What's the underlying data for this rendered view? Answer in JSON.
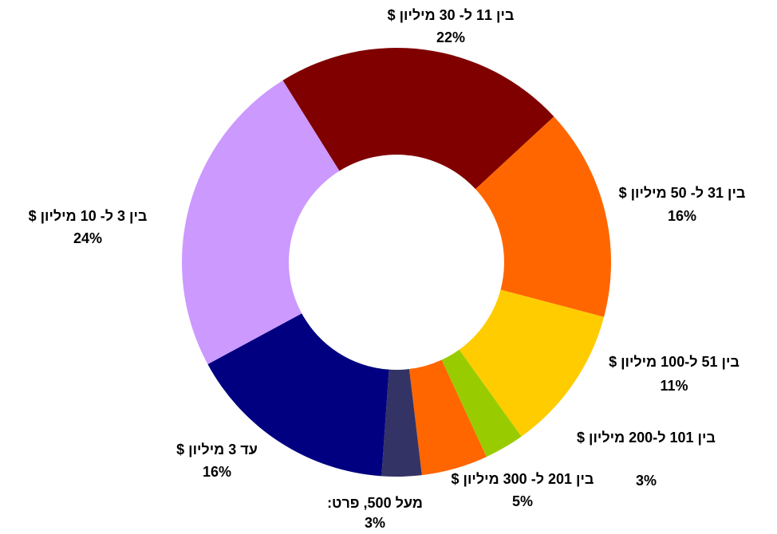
{
  "chart_data": {
    "type": "donut",
    "categories": [
      "בין 11 ל- 30 מיליון $",
      "בין 31 ל- 50 מיליון $",
      "בין 51 ל-100 מיליון $",
      "בין 101 ל-200 מיליון $",
      "בין 201 ל- 300 מיליון $",
      "מעל 500, פרט:",
      "עד 3 מיליון $",
      "בין 3 ל- 10 מיליון $"
    ],
    "values": [
      22,
      16,
      11,
      3,
      5,
      3,
      16,
      24
    ],
    "value_labels": [
      "22%",
      "16%",
      "11%",
      "3%",
      "5%",
      "3%",
      "16%",
      "24%"
    ],
    "colors": [
      "#800000",
      "#ff6600",
      "#ffcc00",
      "#99cc00",
      "#ff6600",
      "#333366",
      "#000080",
      "#cc99ff"
    ]
  }
}
